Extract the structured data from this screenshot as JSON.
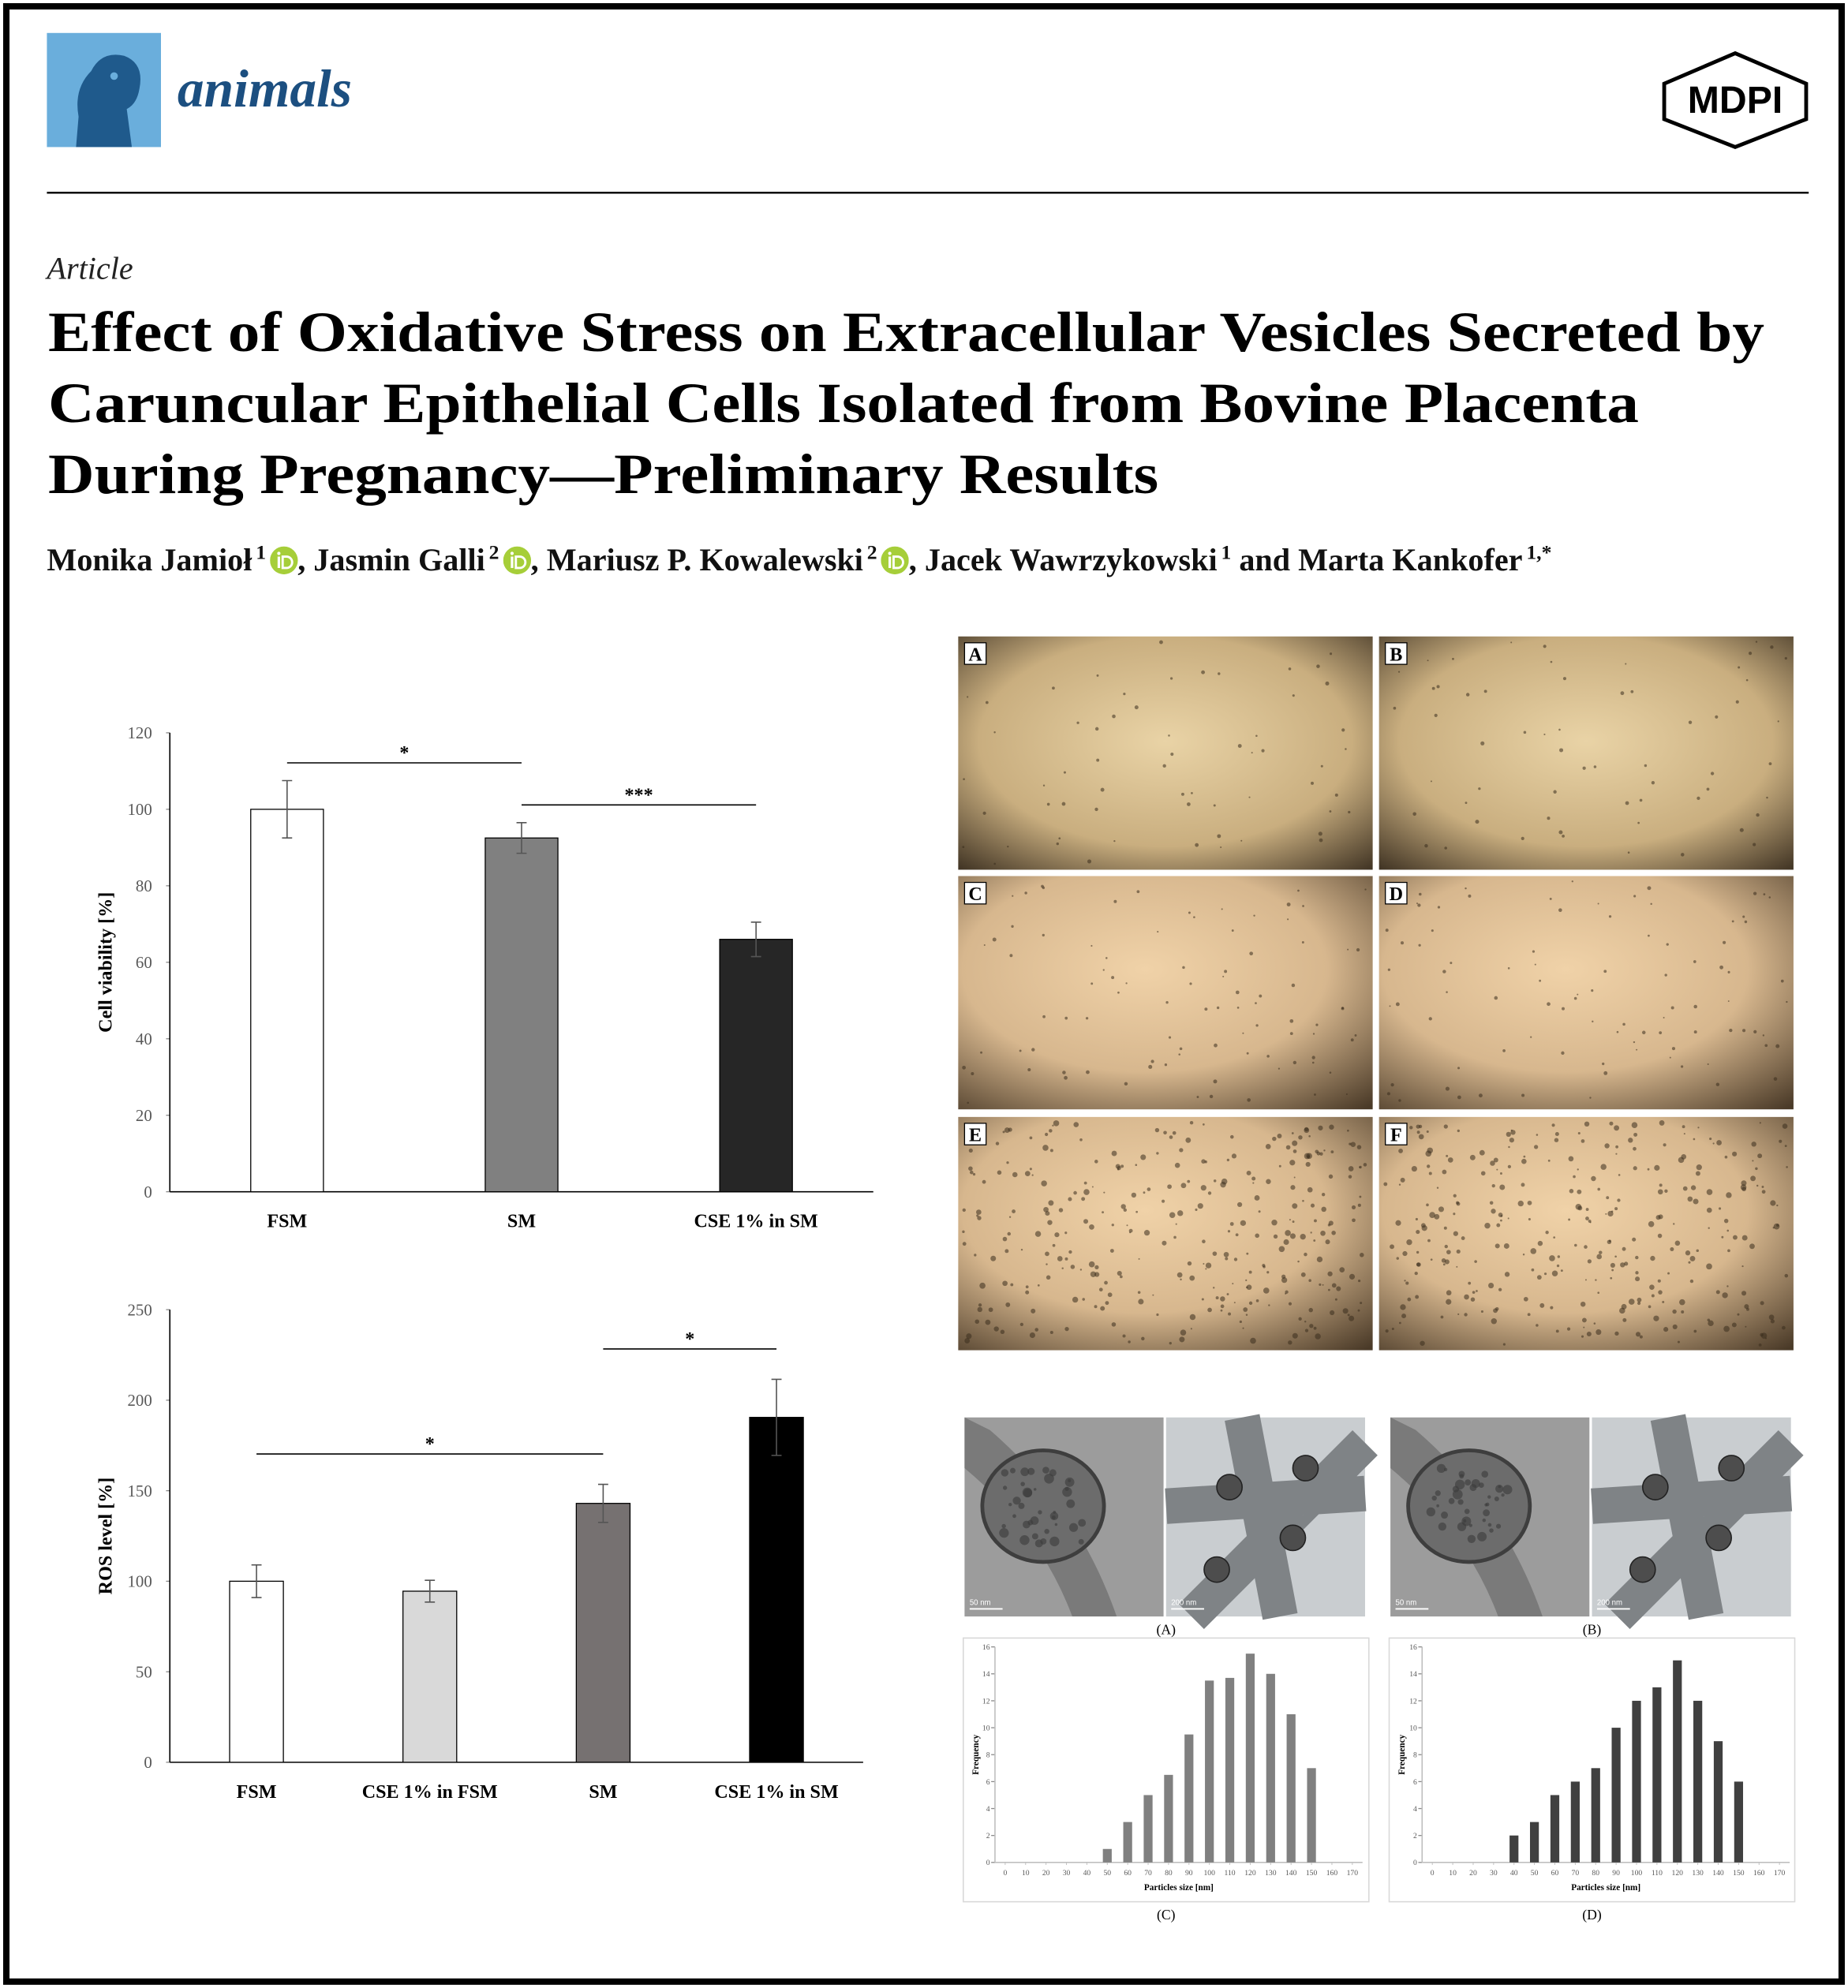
{
  "header": {
    "journal": "animals",
    "publisher": "MDPI"
  },
  "article": {
    "type": "Article",
    "title": [
      "Effect of Oxidative Stress on Extracellular Vesicles Secreted by",
      "Caruncular Epithelial Cells Isolated from Bovine Placenta",
      "During Pregnancy—Preliminary Results"
    ],
    "authors": [
      {
        "name": "Monika Jamioł",
        "affiliation": "1",
        "orcid": true
      },
      {
        "name": "Jasmin Galli",
        "affiliation": "2",
        "orcid": true
      },
      {
        "name": "Mariusz P. Kowalewski",
        "affiliation": "2",
        "orcid": true
      },
      {
        "name": "Jacek Wawrzykowski",
        "affiliation": "1",
        "orcid": false
      },
      {
        "name": "Marta Kankofer",
        "affiliation": "1,*",
        "orcid": false
      }
    ],
    "separators": [
      ", ",
      ", ",
      ", ",
      " and "
    ]
  },
  "chart_data": [
    {
      "type": "bar",
      "ylabel": "Cell viability [%]",
      "categories": [
        "FSM",
        "SM",
        "CSE 1% in SM"
      ],
      "values": [
        100,
        92.5,
        66
      ],
      "errors": [
        7.5,
        4,
        4.5
      ],
      "colors": [
        "#ffffff",
        "#808080",
        "#262626"
      ],
      "ylim": [
        0,
        120
      ],
      "yticks": [
        0,
        20,
        40,
        60,
        80,
        100,
        120
      ],
      "significance": [
        {
          "from": 0,
          "to": 1,
          "label": "*"
        },
        {
          "from": 1,
          "to": 2,
          "label": "***"
        }
      ]
    },
    {
      "type": "bar",
      "ylabel": "ROS level [%]",
      "categories": [
        "FSM",
        "CSE 1% in FSM",
        "SM",
        "CSE 1% in SM"
      ],
      "values": [
        100,
        94.5,
        143,
        190.5
      ],
      "errors": [
        9,
        6,
        10.5,
        21
      ],
      "colors": [
        "#ffffff",
        "#d9d9d9",
        "#767171",
        "#000000"
      ],
      "ylim": [
        0,
        250
      ],
      "yticks": [
        0,
        50,
        100,
        150,
        200,
        250
      ],
      "significance": [
        {
          "from": 0,
          "to": 2,
          "label": "*"
        },
        {
          "from": 2,
          "to": 3,
          "label": "*"
        }
      ]
    },
    {
      "type": "bar",
      "caption": "(C)",
      "xlabel": "Particles size [nm]",
      "ylabel": "Frequency",
      "color": "#808080",
      "x": [
        50,
        60,
        70,
        80,
        90,
        100,
        110,
        120,
        130,
        140,
        150
      ],
      "values": [
        1,
        3,
        5,
        6.5,
        9.5,
        13.5,
        13.7,
        15.5,
        14,
        11,
        7
      ],
      "xlim": [
        -5,
        175
      ],
      "xticks": [
        0,
        10,
        20,
        30,
        40,
        50,
        60,
        70,
        80,
        90,
        100,
        110,
        120,
        130,
        140,
        150,
        160,
        170
      ],
      "ylim": [
        0,
        16
      ],
      "yticks": [
        0,
        2,
        4,
        6,
        8,
        10,
        12,
        14,
        16
      ]
    },
    {
      "type": "bar",
      "caption": "(D)",
      "xlabel": "Particles size [nm]",
      "ylabel": "Frequency",
      "color": "#404040",
      "x": [
        40,
        50,
        60,
        70,
        80,
        90,
        100,
        110,
        120,
        130,
        140,
        150
      ],
      "values": [
        2,
        3,
        5,
        6,
        7,
        10,
        12,
        13,
        15,
        12,
        9,
        6
      ],
      "xlim": [
        -5,
        175
      ],
      "xticks": [
        0,
        10,
        20,
        30,
        40,
        50,
        60,
        70,
        80,
        90,
        100,
        110,
        120,
        130,
        140,
        150,
        160,
        170
      ],
      "ylim": [
        0,
        16
      ],
      "yticks": [
        0,
        2,
        4,
        6,
        8,
        10,
        12,
        14,
        16
      ]
    }
  ],
  "micrographs": {
    "panels": [
      "A",
      "B",
      "C",
      "D",
      "E",
      "F"
    ]
  },
  "tem": {
    "scale_bars": [
      "50 nm",
      "200 nm",
      "50 nm",
      "200 nm"
    ],
    "captions": [
      "(A)",
      "(B)"
    ]
  }
}
